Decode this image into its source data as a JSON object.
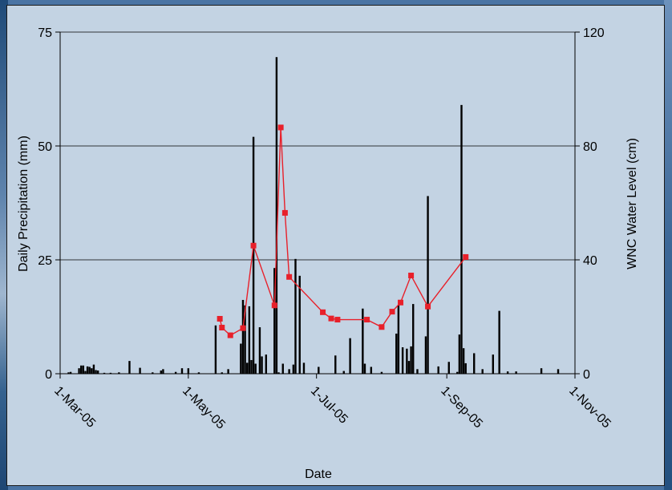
{
  "chart_data": {
    "type": "bar+line",
    "title": "",
    "xlabel": "Date",
    "ylabel_left": "Daily Precipitation (mm)",
    "ylabel_right": "WNC Water Level (cm)",
    "ylim_left": [
      0,
      75
    ],
    "ylim_right": [
      0,
      120
    ],
    "yticks_left": [
      "0",
      "25",
      "50",
      "75"
    ],
    "yticks_right": [
      "0",
      "40",
      "80",
      "120"
    ],
    "xlim": [
      "2005-03-01",
      "2005-11-01"
    ],
    "xticks": [
      {
        "date": "2005-03-01",
        "label": "1-Mar-05"
      },
      {
        "date": "2005-05-01",
        "label": "1-May-05"
      },
      {
        "date": "2005-07-01",
        "label": "1-Jul-05"
      },
      {
        "date": "2005-09-01",
        "label": "1-Sep-05"
      },
      {
        "date": "2005-11-01",
        "label": "1-Nov-05"
      }
    ],
    "grid": "horizontal",
    "legend": "none",
    "colors": {
      "precip_bars": "#000000",
      "water_level_line": "#e8202a",
      "plot_background": "#c3d3e3"
    },
    "series": [
      {
        "type": "bar",
        "axis": "left",
        "points": [
          [
            "2005-03-05",
            0.3
          ],
          [
            "2005-03-06",
            0.4
          ],
          [
            "2005-03-10",
            1.2
          ],
          [
            "2005-03-11",
            1.8
          ],
          [
            "2005-03-12",
            1.8
          ],
          [
            "2005-03-13",
            0.6
          ],
          [
            "2005-03-14",
            1.6
          ],
          [
            "2005-03-15",
            1.5
          ],
          [
            "2005-03-16",
            1.2
          ],
          [
            "2005-03-17",
            2.0
          ],
          [
            "2005-03-18",
            0.8
          ],
          [
            "2005-03-19",
            0.7
          ],
          [
            "2005-03-22",
            0.2
          ],
          [
            "2005-03-25",
            0.2
          ],
          [
            "2005-03-29",
            0.3
          ],
          [
            "2005-04-03",
            2.8
          ],
          [
            "2005-04-08",
            1.3
          ],
          [
            "2005-04-14",
            0.3
          ],
          [
            "2005-04-18",
            0.7
          ],
          [
            "2005-04-19",
            1.0
          ],
          [
            "2005-04-25",
            0.4
          ],
          [
            "2005-04-28",
            1.2
          ],
          [
            "2005-05-01",
            1.2
          ],
          [
            "2005-05-06",
            0.3
          ],
          [
            "2005-05-14",
            10.6
          ],
          [
            "2005-05-17",
            0.3
          ],
          [
            "2005-05-20",
            1.0
          ],
          [
            "2005-05-26",
            6.6
          ],
          [
            "2005-05-27",
            16.2
          ],
          [
            "2005-05-28",
            15.0
          ],
          [
            "2005-05-29",
            2.4
          ],
          [
            "2005-05-30",
            14.8
          ],
          [
            "2005-05-31",
            3.0
          ],
          [
            "2005-06-01",
            52.0
          ],
          [
            "2005-06-02",
            2.2
          ],
          [
            "2005-06-04",
            10.2
          ],
          [
            "2005-06-05",
            3.8
          ],
          [
            "2005-06-07",
            4.2
          ],
          [
            "2005-06-11",
            23.2
          ],
          [
            "2005-06-12",
            69.5
          ],
          [
            "2005-06-13",
            0.3
          ],
          [
            "2005-06-15",
            2.2
          ],
          [
            "2005-06-18",
            1.0
          ],
          [
            "2005-06-20",
            2.0
          ],
          [
            "2005-06-21",
            25.2
          ],
          [
            "2005-06-23",
            21.5
          ],
          [
            "2005-06-25",
            2.4
          ],
          [
            "2005-07-02",
            1.5
          ],
          [
            "2005-07-10",
            4.0
          ],
          [
            "2005-07-14",
            0.6
          ],
          [
            "2005-07-17",
            7.8
          ],
          [
            "2005-07-23",
            14.3
          ],
          [
            "2005-07-24",
            2.2
          ],
          [
            "2005-07-27",
            1.5
          ],
          [
            "2005-08-01",
            0.4
          ],
          [
            "2005-08-08",
            8.8
          ],
          [
            "2005-08-09",
            15.1
          ],
          [
            "2005-08-11",
            5.8
          ],
          [
            "2005-08-13",
            5.5
          ],
          [
            "2005-08-14",
            2.8
          ],
          [
            "2005-08-15",
            6.0
          ],
          [
            "2005-08-16",
            15.3
          ],
          [
            "2005-08-18",
            1.0
          ],
          [
            "2005-08-22",
            8.2
          ],
          [
            "2005-08-23",
            39.0
          ],
          [
            "2005-08-28",
            1.6
          ],
          [
            "2005-09-02",
            2.6
          ],
          [
            "2005-09-06",
            0.4
          ],
          [
            "2005-09-07",
            8.6
          ],
          [
            "2005-09-08",
            59.0
          ],
          [
            "2005-09-09",
            5.6
          ],
          [
            "2005-09-10",
            2.3
          ],
          [
            "2005-09-14",
            4.5
          ],
          [
            "2005-09-18",
            1.0
          ],
          [
            "2005-09-23",
            4.2
          ],
          [
            "2005-09-26",
            13.8
          ],
          [
            "2005-09-30",
            0.5
          ],
          [
            "2005-10-04",
            0.5
          ],
          [
            "2005-10-16",
            1.2
          ],
          [
            "2005-10-24",
            1.0
          ]
        ]
      },
      {
        "type": "line",
        "axis": "right",
        "points": [
          [
            "2005-05-16",
            19.3
          ],
          [
            "2005-05-17",
            16.2
          ],
          [
            "2005-05-21",
            13.5
          ],
          [
            "2005-05-27",
            16.0
          ],
          [
            "2005-06-01",
            45.0
          ],
          [
            "2005-06-11",
            24.0
          ],
          [
            "2005-06-14",
            86.5
          ],
          [
            "2005-06-16",
            56.5
          ],
          [
            "2005-06-18",
            34.0
          ],
          [
            "2005-07-04",
            21.6
          ],
          [
            "2005-07-08",
            19.4
          ],
          [
            "2005-07-11",
            19.0
          ],
          [
            "2005-07-25",
            19.0
          ],
          [
            "2005-08-01",
            16.4
          ],
          [
            "2005-08-06",
            21.8
          ],
          [
            "2005-08-10",
            25.0
          ],
          [
            "2005-08-15",
            34.5
          ],
          [
            "2005-08-23",
            23.6
          ],
          [
            "2005-09-10",
            41.0
          ]
        ]
      }
    ]
  }
}
